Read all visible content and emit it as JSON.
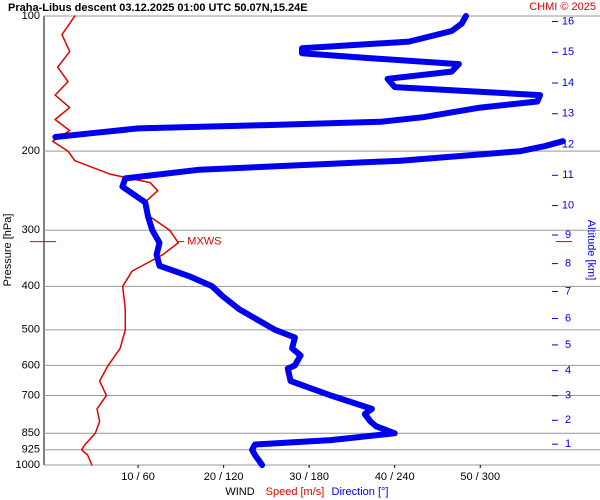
{
  "chart_data": {
    "type": "line",
    "title": "Praha-Libus   descent   03.12.2025 01:00 UTC   50.07N,15.24E",
    "credit": "CHMI © 2025",
    "x_label": "WIND",
    "y_label": "Pressure [hPa]",
    "y2_label": "Altitude [km]",
    "ylim": [
      1000,
      100
    ],
    "log_y": true,
    "yticks": [
      100,
      200,
      300,
      400,
      500,
      600,
      700,
      850,
      925,
      1000
    ],
    "y2ticks": [
      1,
      2,
      3,
      4,
      5,
      6,
      7,
      8,
      9,
      10,
      11,
      12,
      13,
      14,
      15,
      16
    ],
    "xlim": [
      -1,
      64
    ],
    "x2lim": [
      -6,
      384
    ],
    "xticks": [
      {
        "value": 10,
        "label": "10 / 60"
      },
      {
        "value": 20,
        "label": "20 / 120"
      },
      {
        "value": 30,
        "label": "30 / 180"
      },
      {
        "value": 40,
        "label": "40 / 240"
      },
      {
        "value": 50,
        "label": "50 / 300"
      }
    ],
    "grid": true,
    "series": [
      {
        "name": "Speed [m/s]",
        "color": "#e00000",
        "pressure": [
          1000,
          950,
          925,
          900,
          850,
          800,
          750,
          700,
          650,
          600,
          550,
          500,
          450,
          400,
          370,
          340,
          320,
          300,
          280,
          260,
          245,
          235,
          225,
          210,
          200,
          190,
          180,
          170,
          160,
          150,
          140,
          130,
          120,
          110,
          100
        ],
        "values": [
          4.6,
          4.1,
          3.4,
          3.8,
          5,
          5.5,
          5.2,
          6.3,
          5.5,
          6.5,
          7.9,
          8.5,
          8.5,
          8.2,
          9.3,
          12.9,
          14.7,
          13.7,
          11.4,
          10.8,
          12.3,
          11.4,
          6.7,
          2.6,
          1.8,
          0,
          2,
          0.3,
          2,
          0.3,
          1.8,
          0.6,
          2,
          1.1,
          2.6
        ]
      },
      {
        "name": "Direction [°]",
        "color": "#0000ee",
        "axis": "x2",
        "pressure": [
          1000,
          950,
          925,
          900,
          880,
          850,
          820,
          800,
          770,
          750,
          700,
          650,
          610,
          600,
          570,
          550,
          520,
          500,
          450,
          420,
          400,
          380,
          360,
          340,
          320,
          300,
          280,
          260,
          240,
          230,
          220,
          210,
          200,
          195,
          190,
          null,
          186,
          182,
          178,
          175,
          172,
          168,
          160,
          155,
          150,
          144,
          138,
          133,
          128,
          124,
          121,
          118,
          114,
          108,
          104,
          100
        ],
        "values": [
          147,
          142,
          140,
          142,
          195,
          240,
          227,
          223,
          219,
          224,
          195,
          167,
          165,
          170,
          174,
          168,
          170,
          156,
          131,
          119,
          112,
          96,
          75,
          73,
          75,
          70,
          67,
          65,
          49,
          51,
          103,
          244,
          328,
          345,
          358,
          null,
          2,
          30,
          60,
          150,
          230,
          260,
          300,
          340,
          342,
          240,
          235,
          280,
          285,
          220,
          175,
          175,
          250,
          280,
          287,
          290
        ]
      }
    ],
    "annotations": [
      {
        "text": "MXWS",
        "pressure": 318,
        "value": 14.7
      }
    ]
  }
}
